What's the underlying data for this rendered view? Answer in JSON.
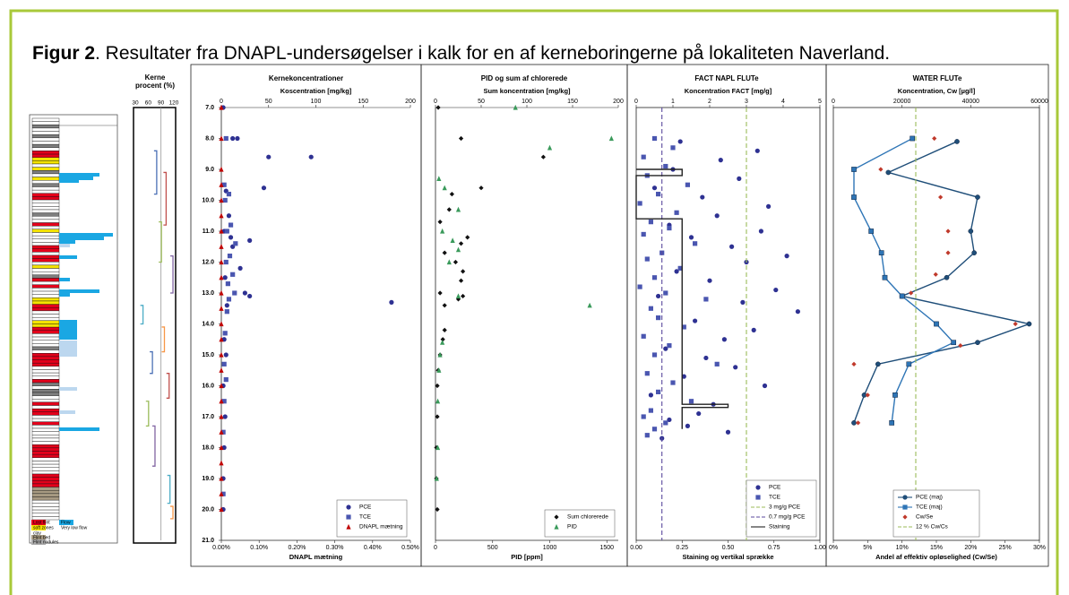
{
  "caption": {
    "label": "Figur 2",
    "text": ". Resultater fra DNAPL-undersøgelser i kalk for en af kerneboringerne på lokaliteten Naverland."
  },
  "log_legend": [
    "Lost flint",
    "Flow",
    "soft zones",
    "Very low flow",
    "clay",
    "Flint bed",
    "Flint nodules"
  ],
  "chart_data": [
    {
      "type": "segments",
      "title": "Kerne procent (%)",
      "xlim": [
        30,
        120
      ],
      "xticks": [
        30,
        60,
        90,
        120
      ],
      "ylim": [
        7,
        21
      ],
      "refline": 90,
      "segments": [
        {
          "from": 8.4,
          "to": 9.8,
          "value": 80,
          "color": "#4a6fb5"
        },
        {
          "from": 9.1,
          "to": 10.8,
          "value": 102,
          "color": "#c0504d"
        },
        {
          "from": 10.7,
          "to": 12.0,
          "value": 91,
          "color": "#9bbb59"
        },
        {
          "from": 11.8,
          "to": 13.0,
          "value": 118,
          "color": "#8064a2"
        },
        {
          "from": 13.4,
          "to": 14.0,
          "value": 48,
          "color": "#4bacc6"
        },
        {
          "from": 14.1,
          "to": 14.9,
          "value": 98,
          "color": "#f79646"
        },
        {
          "from": 14.9,
          "to": 15.6,
          "value": 70,
          "color": "#4a6fb5"
        },
        {
          "from": 15.6,
          "to": 16.4,
          "value": 109,
          "color": "#c0504d"
        },
        {
          "from": 16.5,
          "to": 17.3,
          "value": 61,
          "color": "#9bbb59"
        },
        {
          "from": 17.3,
          "to": 18.6,
          "value": 76,
          "color": "#8064a2"
        },
        {
          "from": 18.9,
          "to": 19.8,
          "value": 111,
          "color": "#4bacc6"
        },
        {
          "from": 19.9,
          "to": 20.3,
          "value": 118,
          "color": "#f79646"
        }
      ]
    },
    {
      "type": "profile",
      "title": "Kernekoncentrationer",
      "xlabel": "Koscentration [mg/kg]",
      "x2label": "DNAPL mætning",
      "xlim": [
        0,
        200
      ],
      "xticks": [
        0,
        50,
        100,
        150,
        200
      ],
      "x2lim": [
        0,
        0.5
      ],
      "x2ticks": [
        {
          "value": 0,
          "label": "0.00%"
        },
        {
          "value": 0.1,
          "label": "0.10%"
        },
        {
          "value": 0.2,
          "label": "0.20%"
        },
        {
          "value": 0.3,
          "label": "0.30%"
        },
        {
          "value": 0.4,
          "label": "0.40%"
        },
        {
          "value": 0.5,
          "label": "0.50%"
        }
      ],
      "ylim": [
        7,
        21
      ],
      "yticks": [
        {
          "value": 7,
          "label": "7.0"
        },
        {
          "value": 8,
          "label": "8.0"
        },
        {
          "value": 9,
          "label": "9.0"
        },
        {
          "value": 10,
          "label": "10.0"
        },
        {
          "value": 11,
          "label": "11.0"
        },
        {
          "value": 12,
          "label": "12.0"
        },
        {
          "value": 13,
          "label": "13.0"
        },
        {
          "value": 14,
          "label": "14.0"
        },
        {
          "value": 15,
          "label": "15.0"
        },
        {
          "value": 16,
          "label": "16.0"
        },
        {
          "value": 17,
          "label": "17.0"
        },
        {
          "value": 18,
          "label": "18.0"
        },
        {
          "value": 19,
          "label": "19.0"
        },
        {
          "value": 20,
          "label": "20.0"
        },
        {
          "value": 21,
          "label": "21.0"
        }
      ],
      "legend": "lower right",
      "series": [
        {
          "name": "PCE",
          "color": "#2e3192",
          "marker": "circle",
          "x": [
            2,
            12,
            17,
            50,
            95,
            45,
            5,
            8,
            3,
            10,
            30,
            12,
            20,
            4,
            25,
            30,
            180,
            6,
            3,
            5,
            2,
            4,
            3,
            2,
            2
          ],
          "y": [
            7.0,
            8.0,
            8.0,
            8.6,
            8.6,
            9.6,
            9.7,
            10.5,
            11.0,
            11.2,
            11.3,
            11.5,
            12.2,
            12.5,
            13.0,
            13.1,
            13.3,
            13.4,
            14.5,
            15.0,
            16.0,
            17.0,
            18.0,
            19.0,
            20.0
          ]
        },
        {
          "name": "TCE",
          "color": "#4a56b0",
          "marker": "square",
          "x": [
            5,
            3,
            8,
            4,
            10,
            6,
            15,
            9,
            5,
            12,
            7,
            14,
            8,
            6,
            4,
            3,
            5,
            3,
            2,
            2
          ],
          "y": [
            8.0,
            9.5,
            9.8,
            10.0,
            10.8,
            11.0,
            11.4,
            11.8,
            12.0,
            12.4,
            12.7,
            13.0,
            13.2,
            13.6,
            14.3,
            15.3,
            15.8,
            16.5,
            17.5,
            19.5
          ]
        },
        {
          "name": "DNAPL mætning",
          "color": "#c00000",
          "marker": "triangle",
          "axis": "x2",
          "x": [
            0,
            0,
            0,
            0,
            0,
            0,
            0,
            0,
            0,
            0,
            0,
            0,
            0,
            0,
            0,
            0,
            0,
            0,
            0,
            0,
            0,
            0,
            0,
            0,
            0
          ],
          "y": [
            7.0,
            8.0,
            9.0,
            9.5,
            10.0,
            10.5,
            11.0,
            11.5,
            12.0,
            12.5,
            13.0,
            13.5,
            14.0,
            14.5,
            15.0,
            15.5,
            16.0,
            16.5,
            17.0,
            17.5,
            18.0,
            18.5,
            19.0,
            19.5,
            20.0
          ]
        }
      ]
    },
    {
      "type": "profile",
      "title": "PID og sum af chlorerede",
      "xlabel": "Sum koncentration [mg/kg]",
      "x2label": "PID [ppm]",
      "xlim": [
        0,
        200
      ],
      "xticks": [
        0,
        50,
        100,
        150,
        200
      ],
      "x2lim": [
        0,
        1600
      ],
      "x2ticks": [
        0,
        500,
        1000,
        1500
      ],
      "ylim": [
        7,
        21
      ],
      "legend": "lower right",
      "series": [
        {
          "name": "Sum chlorerede",
          "color": "#111111",
          "marker": "diamond",
          "x": [
            3,
            28,
            118,
            50,
            18,
            15,
            5,
            35,
            28,
            10,
            22,
            30,
            28,
            5,
            30,
            25,
            10,
            10,
            8,
            5,
            3,
            2,
            2,
            1,
            1,
            2
          ],
          "y": [
            7.0,
            8.0,
            8.6,
            9.6,
            9.8,
            10.3,
            10.7,
            11.2,
            11.4,
            11.7,
            12.0,
            12.3,
            12.6,
            13.0,
            13.1,
            13.2,
            13.4,
            14.2,
            14.5,
            15.0,
            15.5,
            16.0,
            17.0,
            18.0,
            19.0,
            20.0
          ]
        },
        {
          "name": "PID",
          "color": "#3a9a5b",
          "marker": "triangle",
          "axis": "x2",
          "x": [
            700,
            1540,
            1000,
            30,
            80,
            200,
            60,
            150,
            200,
            120,
            200,
            1350,
            60,
            40,
            30,
            20,
            20,
            10
          ],
          "y": [
            7.0,
            8.0,
            8.3,
            9.3,
            9.6,
            10.3,
            11.0,
            11.3,
            11.6,
            12.0,
            13.1,
            13.4,
            14.6,
            15.0,
            15.5,
            16.5,
            18.0,
            19.0
          ]
        }
      ]
    },
    {
      "type": "profile",
      "title": "FACT NAPL FLUTe",
      "xlabel": "Koncentration FACT [mg/g]",
      "x2label": "Staining og vertikal sprække",
      "xlim": [
        0,
        5
      ],
      "xticks": [
        0,
        1,
        2,
        3,
        4,
        5
      ],
      "x2lim": [
        0,
        1
      ],
      "x2ticks": [
        {
          "value": 0,
          "label": "0.00"
        },
        {
          "value": 0.25,
          "label": "0.25"
        },
        {
          "value": 0.5,
          "label": "0.50"
        },
        {
          "value": 0.75,
          "label": "0.75"
        },
        {
          "value": 1,
          "label": "1.00"
        }
      ],
      "ylim": [
        7,
        21
      ],
      "legend": "lower right",
      "series": [
        {
          "name": "PCE",
          "color": "#2e3192",
          "marker": "circle",
          "x": [
            1.2,
            3.3,
            2.3,
            1.0,
            2.8,
            0.5,
            1.8,
            3.6,
            2.2,
            0.9,
            3.4,
            1.5,
            2.6,
            4.1,
            3.0,
            1.1,
            2.0,
            3.8,
            0.6,
            2.9,
            4.4,
            1.6,
            3.2,
            2.4,
            0.8,
            1.9,
            2.7,
            1.3,
            3.5,
            0.4,
            2.1,
            1.7,
            0.9,
            1.4,
            2.5,
            0.7
          ],
          "y": [
            8.1,
            8.4,
            8.7,
            9.0,
            9.3,
            9.6,
            9.9,
            10.2,
            10.5,
            10.8,
            11.0,
            11.2,
            11.5,
            11.8,
            12.0,
            12.3,
            12.6,
            12.9,
            13.1,
            13.3,
            13.6,
            13.9,
            14.2,
            14.5,
            14.8,
            15.1,
            15.4,
            15.7,
            16.0,
            16.3,
            16.6,
            16.9,
            17.1,
            17.3,
            17.5,
            17.7
          ]
        },
        {
          "name": "TCE",
          "color": "#4a56b0",
          "marker": "square",
          "x": [
            0.5,
            1.0,
            0.2,
            0.8,
            0.3,
            1.4,
            0.6,
            0.1,
            1.1,
            0.4,
            0.9,
            0.2,
            1.6,
            0.7,
            0.3,
            1.2,
            0.5,
            0.1,
            0.8,
            1.9,
            0.4,
            0.6,
            1.3,
            0.2,
            0.9,
            0.5,
            2.2,
            0.3,
            1.0,
            0.6,
            1.5,
            0.4,
            0.2,
            0.8,
            0.5,
            0.3
          ],
          "y": [
            8.0,
            8.3,
            8.6,
            8.9,
            9.2,
            9.5,
            9.8,
            10.1,
            10.4,
            10.7,
            10.9,
            11.1,
            11.4,
            11.7,
            11.9,
            12.2,
            12.5,
            12.8,
            13.0,
            13.2,
            13.5,
            13.8,
            14.1,
            14.4,
            14.7,
            15.0,
            15.3,
            15.6,
            15.9,
            16.2,
            16.5,
            16.8,
            17.0,
            17.2,
            17.4,
            17.6
          ]
        },
        {
          "name": "3 mg/g PCE",
          "color": "#9bbb59",
          "line": "dashed",
          "x": [
            3,
            3
          ],
          "y": [
            7,
            21
          ]
        },
        {
          "name": "0.7 mg/g PCE",
          "color": "#5b4a9e",
          "line": "dashed",
          "x": [
            0.7,
            0.7
          ],
          "y": [
            7,
            21
          ]
        },
        {
          "name": "Staining",
          "color": "#222222",
          "line": "solid",
          "axis": "x2",
          "x": [
            0,
            0.25,
            0.25,
            0,
            0,
            0.25,
            0.25,
            0.5,
            0.5,
            0.25,
            0.25
          ],
          "y": [
            9.0,
            9.0,
            9.2,
            9.2,
            10.6,
            10.6,
            16.6,
            16.6,
            16.7,
            16.7,
            17.4
          ]
        }
      ]
    },
    {
      "type": "profile",
      "title": "WATER FLUTe",
      "xlabel": "Koncentration, Cw [µg/l]",
      "x2label": "Andel af effektiv opløselighed (Cw/Se)",
      "xlim": [
        0,
        60000
      ],
      "xticks": [
        0,
        20000,
        40000,
        60000
      ],
      "x2lim": [
        0,
        30
      ],
      "x2ticks": [
        {
          "value": 0,
          "label": "0%"
        },
        {
          "value": 5,
          "label": "5%"
        },
        {
          "value": 10,
          "label": "10%"
        },
        {
          "value": 15,
          "label": "15%"
        },
        {
          "value": 20,
          "label": "20%"
        },
        {
          "value": 25,
          "label": "25%"
        },
        {
          "value": 30,
          "label": "30%"
        }
      ],
      "ylim": [
        7,
        21
      ],
      "legend": "lower center",
      "series": [
        {
          "name": "PCE (maj)",
          "color": "#1f4e79",
          "marker": "circle",
          "line": "solid",
          "x": [
            36000,
            16000,
            42000,
            40000,
            41000,
            33000,
            20000,
            57000,
            42000,
            13000,
            9000,
            6000
          ],
          "y": [
            8.1,
            9.1,
            9.9,
            11.0,
            11.7,
            12.5,
            13.1,
            14.0,
            14.6,
            15.3,
            16.3,
            17.2
          ]
        },
        {
          "name": "TCE (maj)",
          "color": "#2e75b6",
          "marker": "square",
          "line": "solid",
          "x": [
            23000,
            6000,
            6000,
            11000,
            14000,
            15000,
            20000,
            30000,
            35000,
            22000,
            18000,
            17000
          ],
          "y": [
            8.0,
            9.0,
            9.9,
            11.0,
            11.7,
            12.5,
            13.1,
            14.0,
            14.6,
            15.3,
            16.3,
            17.2
          ]
        },
        {
          "name": "Cw/Se",
          "color": "#c0392b",
          "marker": "diamond",
          "axis": "x2",
          "x": [
            14.7,
            6.9,
            15.6,
            16.7,
            16.7,
            14.9,
            11.3,
            26.5,
            18.5,
            3,
            5,
            3.6
          ],
          "y": [
            8.0,
            9.0,
            9.9,
            11.0,
            11.7,
            12.4,
            13.0,
            14.0,
            14.7,
            15.3,
            16.3,
            17.2
          ]
        },
        {
          "name": "12 % Cw/Cs",
          "color": "#9bbb59",
          "line": "dashed",
          "axis": "x2",
          "x": [
            12,
            12
          ],
          "y": [
            7,
            21
          ]
        }
      ]
    }
  ]
}
